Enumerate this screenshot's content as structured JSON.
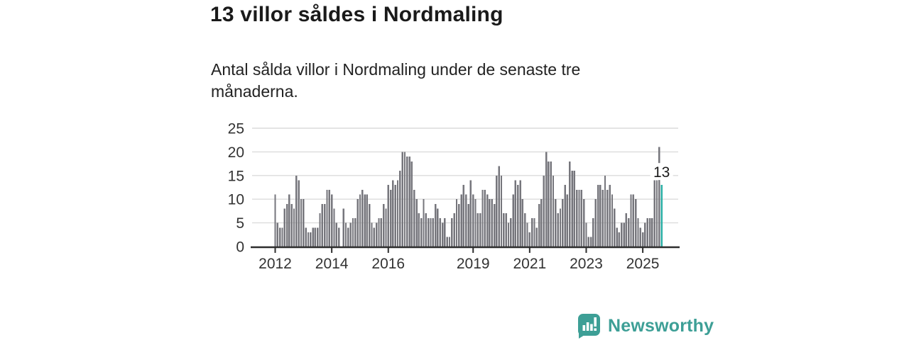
{
  "header": {
    "title": "13 villor såldes i Nordmaling",
    "subtitle": "Antal sålda villor i Nordmaling under de senaste tre månaderna."
  },
  "chart_data": {
    "type": "bar",
    "title": "13 villor såldes i Nordmaling",
    "subtitle": "Antal sålda villor i Nordmaling under de senaste tre månaderna.",
    "x_start_label": "2012",
    "x_tick_labels": [
      "2012",
      "2014",
      "2016",
      "2019",
      "2021",
      "2023",
      "2025"
    ],
    "x_tick_indices": [
      0,
      24,
      48,
      84,
      108,
      132,
      156
    ],
    "y_ticks": [
      0,
      5,
      10,
      15,
      20,
      25
    ],
    "ylim": [
      0,
      25
    ],
    "grid": true,
    "values": [
      11,
      5,
      4,
      4,
      8,
      9,
      11,
      9,
      8,
      15,
      14,
      10,
      10,
      4,
      3,
      3,
      4,
      4,
      4,
      7,
      9,
      9,
      12,
      12,
      11,
      8,
      5,
      4,
      0,
      8,
      5,
      4,
      5,
      6,
      6,
      10,
      11,
      12,
      11,
      11,
      9,
      5,
      4,
      5,
      6,
      6,
      9,
      8,
      13,
      12,
      14,
      13,
      14,
      16,
      20,
      20,
      19,
      19,
      18,
      12,
      10,
      7,
      6,
      10,
      7,
      6,
      6,
      6,
      9,
      8,
      6,
      5,
      6,
      2,
      2,
      6,
      7,
      10,
      9,
      11,
      13,
      11,
      9,
      14,
      11,
      10,
      7,
      7,
      12,
      12,
      11,
      10,
      10,
      9,
      15,
      17,
      15,
      7,
      7,
      5,
      6,
      11,
      14,
      13,
      14,
      10,
      7,
      5,
      3,
      6,
      6,
      4,
      9,
      10,
      15,
      20,
      18,
      18,
      15,
      10,
      7,
      8,
      10,
      13,
      11,
      18,
      16,
      16,
      12,
      12,
      12,
      10,
      5,
      2,
      2,
      6,
      10,
      13,
      13,
      12,
      15,
      12,
      13,
      11,
      8,
      4,
      3,
      5,
      5,
      7,
      6,
      11,
      11,
      10,
      6,
      4,
      3,
      5,
      6,
      6,
      6,
      14,
      14,
      21,
      13
    ],
    "highlight": {
      "index": 164,
      "value": 13,
      "label": "13",
      "color": "#2aafa5"
    },
    "colors": {
      "bar": "#76767c",
      "grid": "#dcdcdc",
      "axis_line": "#2e2e2e",
      "axis_text": "#333333",
      "annotation_text": "#1a1a1a"
    }
  },
  "footer": {
    "brand": "Newsworthy",
    "brand_color": "#3d9f96",
    "logo_icon": "newsworthy-speech-bubble-bars-icon"
  }
}
